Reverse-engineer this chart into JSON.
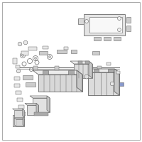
{
  "bg_color": "#ffffff",
  "border_color": "#aaaaaa",
  "line_color": "#666666",
  "part_fill": "#e8e8e8",
  "part_dark": "#aaaaaa",
  "part_mid": "#cccccc",
  "figsize": [
    2.0,
    2.0
  ],
  "dpi": 100,
  "img_alpha": 1.0
}
